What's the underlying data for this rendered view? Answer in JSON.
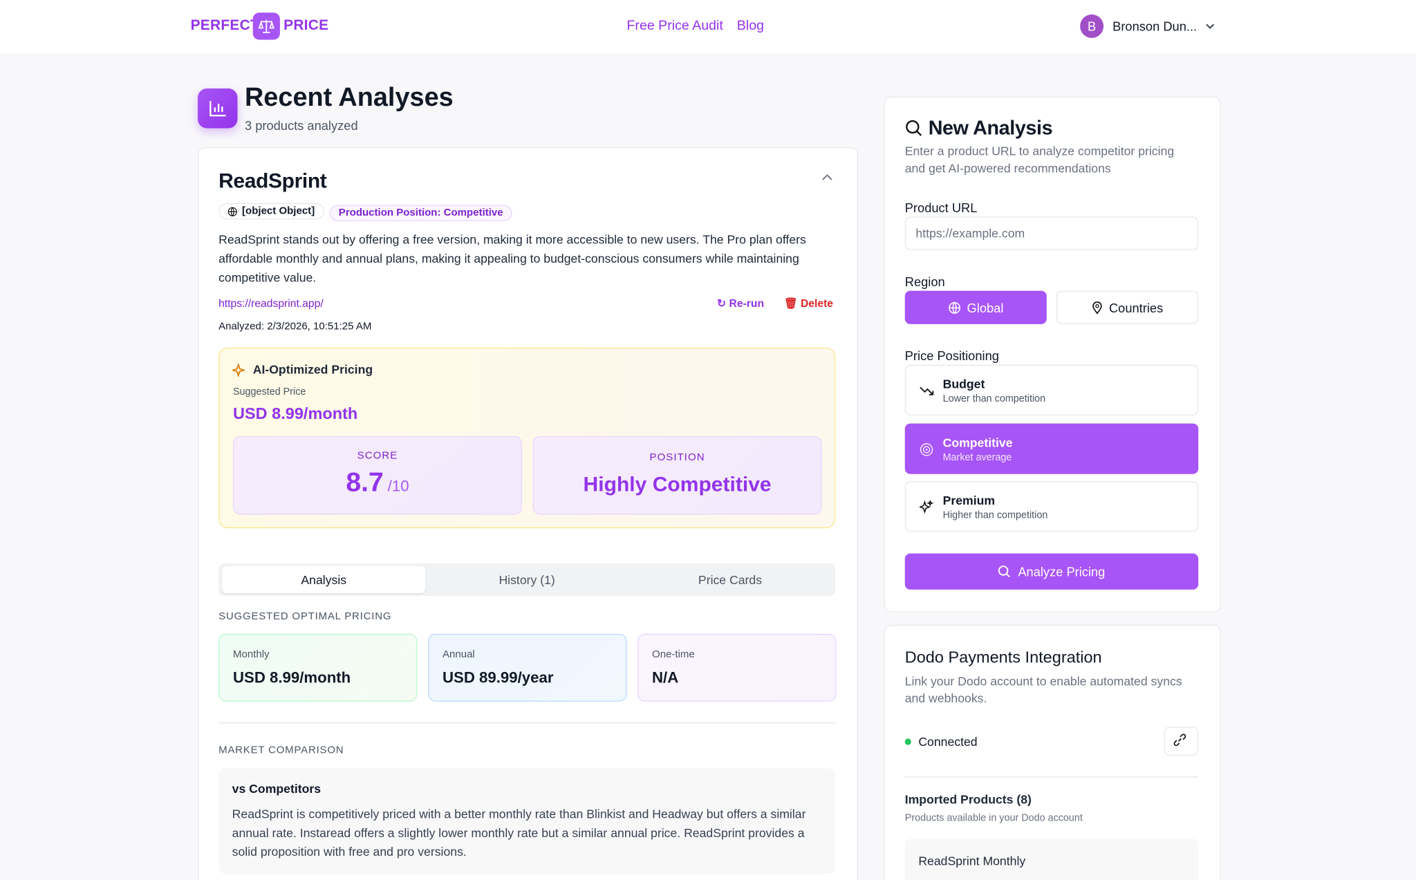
{
  "header": {
    "brand_left": "PERFECT",
    "brand_right": "PRICE",
    "nav": [
      "Free Price Audit",
      "Blog"
    ],
    "user_initial": "B",
    "user_name": "Bronson Dun..."
  },
  "recent": {
    "title": "Recent Analyses",
    "subtitle": "3 products analyzed",
    "product": {
      "name": "ReadSprint",
      "market": {
        "label": "MARKET COMPARISON",
        "heading": "vs Competitors",
        "text": "ReadSprint is competitively priced with a better monthly rate than Blinkist and Headway but offers a similar annual rate. Instaread offers a slightly lower monthly rate but a similar annual price. ReadSprint provides a solid proposition with free and pro versions."
      },
      "position": "Production Position: Competitive",
      "description": "ReadSprint stands out by offering a free version, making it more accessible to new users. The Pro plan offers affordable monthly and annual plans, making it appealing to budget-conscious consumers while maintaining competitive value.",
      "url": "https://readsprint.app/",
      "rerun": "Re-run",
      "delete": "Delete",
      "analyzed": "Analyzed: 2/3/2026, 10:51:25 AM",
      "ai": {
        "title": "AI-Optimized Pricing",
        "suggested_label": "Suggested Price",
        "suggested_price": "USD 8.99/month",
        "score_label": "SCORE",
        "score": 8.7,
        "score_suffix": "/10",
        "position_label": "POSITION",
        "position_value": "Highly Competitive"
      },
      "tabs": [
        "Analysis",
        "History (1)",
        "Price Cards"
      ],
      "optimal": {
        "label": "SUGGESTED OPTIMAL PRICING",
        "cards": [
          {
            "label": "Monthly",
            "value": "USD 8.99/month"
          },
          {
            "label": "Annual",
            "value": "USD 89.99/year"
          },
          {
            "label": "One-time",
            "value": "N/A"
          }
        ]
      }
    }
  },
  "new_analysis": {
    "title": "New Analysis",
    "description": "Enter a product URL to analyze competitor pricing and get AI-powered recommendations",
    "url_label": "Product URL",
    "url_placeholder": "https://example.com",
    "region_label": "Region",
    "regions": [
      "Global",
      "Countries"
    ],
    "positioning_label": "Price Positioning",
    "options": [
      {
        "title": "Budget",
        "subtitle": "Lower than competition"
      },
      {
        "title": "Competitive",
        "subtitle": "Market average"
      },
      {
        "title": "Premium",
        "subtitle": "Higher than competition"
      }
    ],
    "button": "Analyze Pricing"
  },
  "dodo": {
    "title": "Dodo Payments Integration",
    "description": "Link your Dodo account to enable automated syncs and webhooks.",
    "status": "Connected",
    "imported_title": "Imported Products (8)",
    "imported_subtitle": "Products available in your Dodo account",
    "products": [
      "ReadSprint Monthly"
    ]
  }
}
